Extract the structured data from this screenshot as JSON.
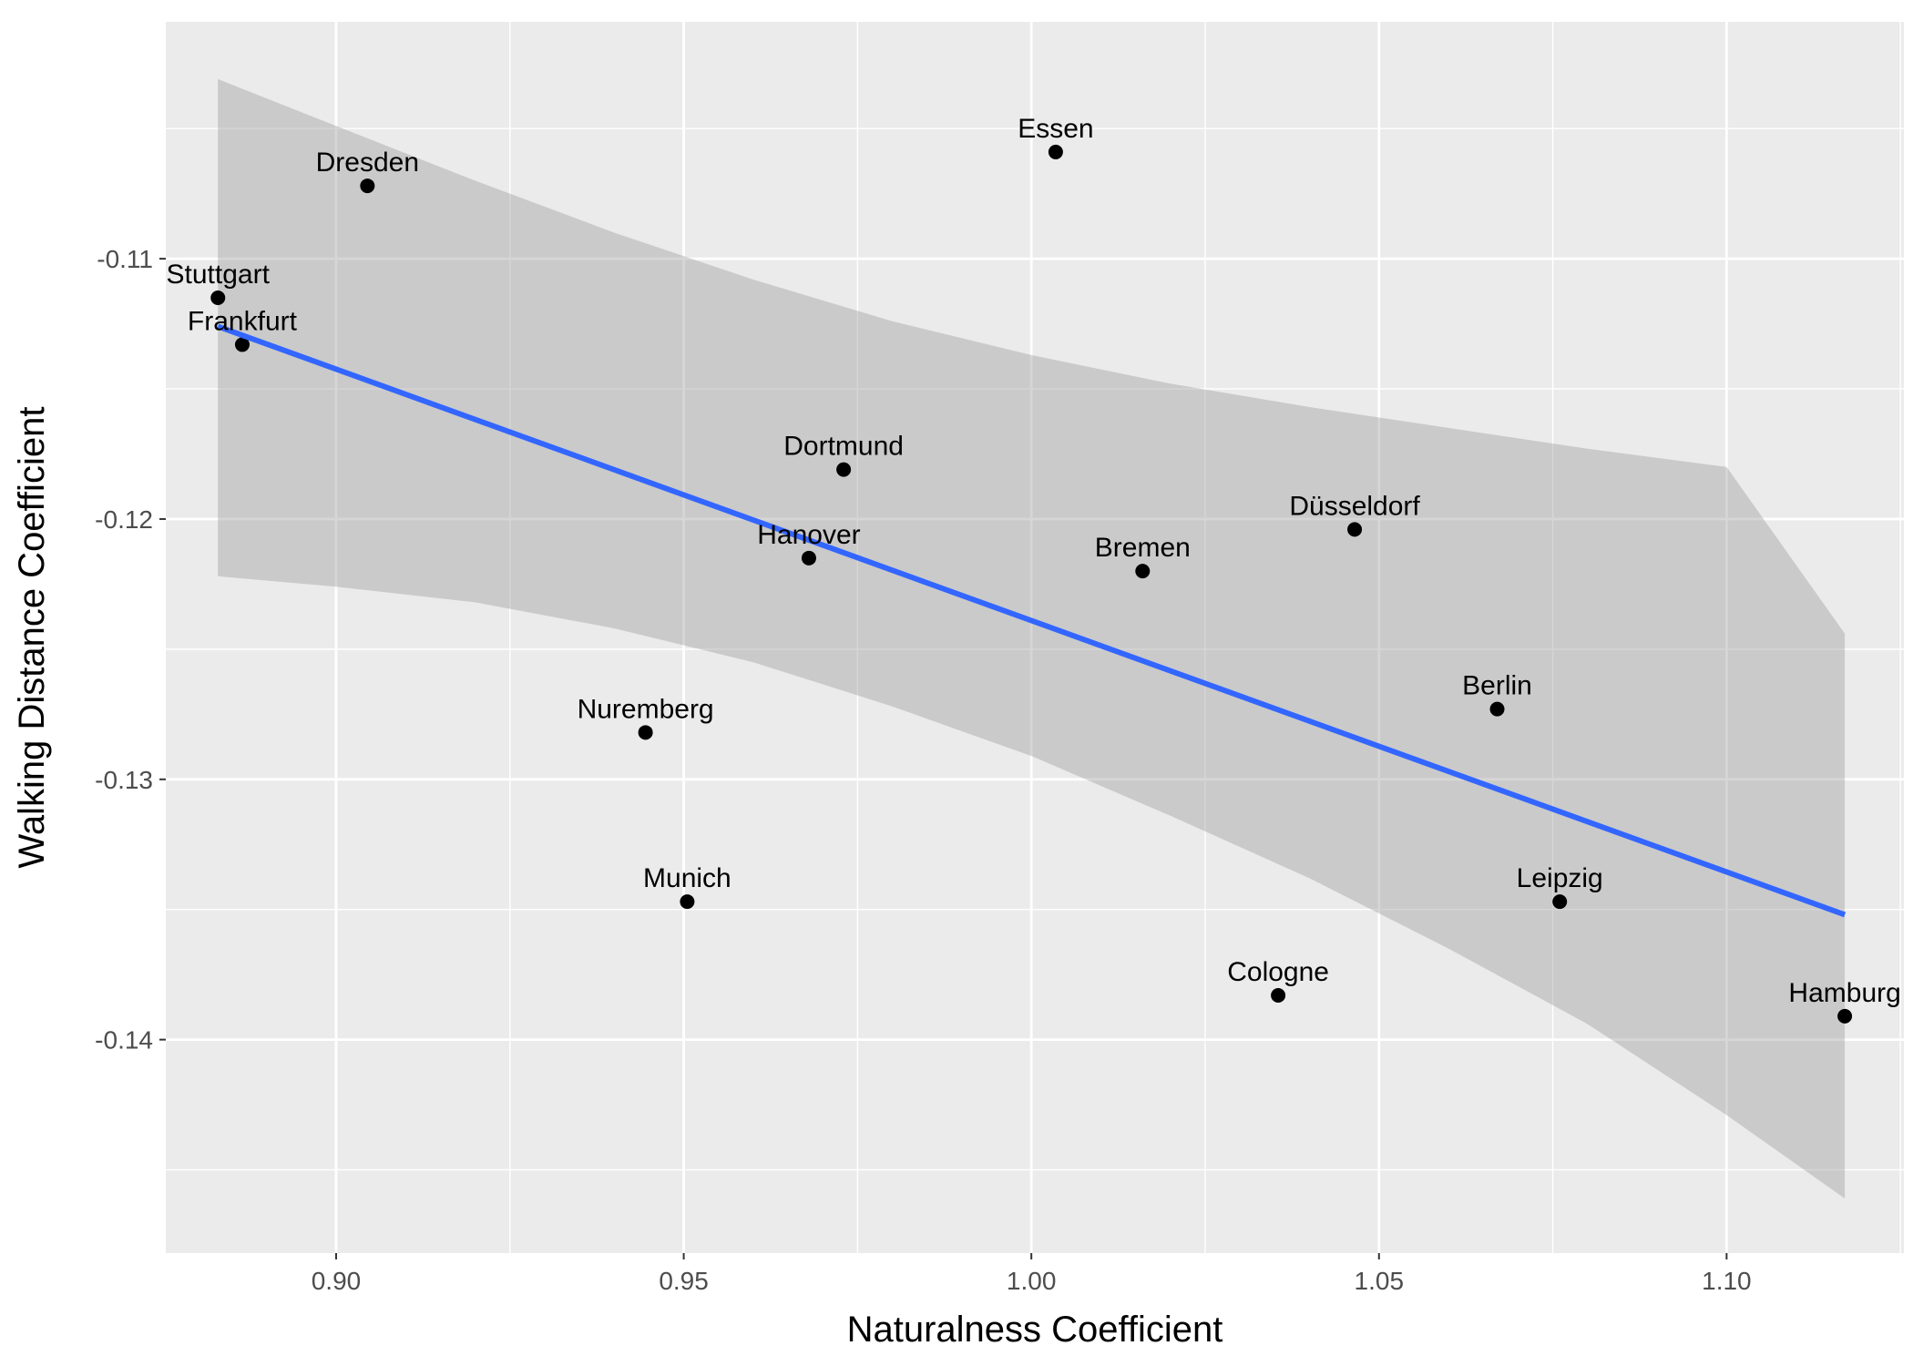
{
  "chart_data": {
    "type": "scatter",
    "title": "",
    "xlabel": "Naturalness Coefficient",
    "ylabel": "Walking Distance Coefficient",
    "xlim": [
      0.8755,
      1.1255
    ],
    "ylim": [
      -0.1482,
      -0.1009
    ],
    "x_ticks": [
      0.9,
      0.95,
      1.0,
      1.05,
      1.1
    ],
    "x_tick_labels": [
      "0.90",
      "0.95",
      "1.00",
      "1.05",
      "1.10"
    ],
    "y_ticks": [
      -0.11,
      -0.12,
      -0.13,
      -0.14
    ],
    "y_tick_labels": [
      "-0.11",
      "-0.12",
      "-0.13",
      "-0.14"
    ],
    "x_minor_ticks": [
      0.875,
      0.925,
      0.975,
      1.025,
      1.075,
      1.125
    ],
    "y_minor_ticks": [
      -0.105,
      -0.115,
      -0.125,
      -0.135,
      -0.145
    ],
    "grid": true,
    "colors": {
      "panel_background": "#ebebeb",
      "grid": "#ffffff",
      "point": "#000000",
      "regression_line": "#3366ff",
      "confidence_band": "#999999"
    },
    "points": [
      {
        "label": "Stuttgart",
        "x": 0.883,
        "y": -0.1115
      },
      {
        "label": "Frankfurt",
        "x": 0.8865,
        "y": -0.1133
      },
      {
        "label": "Dresden",
        "x": 0.9045,
        "y": -0.1072
      },
      {
        "label": "Essen",
        "x": 1.0035,
        "y": -0.1059
      },
      {
        "label": "Dortmund",
        "x": 0.973,
        "y": -0.1181
      },
      {
        "label": "Hanover",
        "x": 0.968,
        "y": -0.1215
      },
      {
        "label": "Bremen",
        "x": 1.016,
        "y": -0.122
      },
      {
        "label": "Düsseldorf",
        "x": 1.0465,
        "y": -0.1204
      },
      {
        "label": "Berlin",
        "x": 1.067,
        "y": -0.1273
      },
      {
        "label": "Nuremberg",
        "x": 0.9445,
        "y": -0.1282
      },
      {
        "label": "Munich",
        "x": 0.9505,
        "y": -0.1347
      },
      {
        "label": "Leipzig",
        "x": 1.076,
        "y": -0.1347
      },
      {
        "label": "Cologne",
        "x": 1.0355,
        "y": -0.1383
      },
      {
        "label": "Hamburg",
        "x": 1.117,
        "y": -0.1391
      }
    ],
    "regression": {
      "method": "linear",
      "start": {
        "x": 0.883,
        "y": -0.1126
      },
      "end": {
        "x": 1.117,
        "y": -0.1352
      },
      "confidence_band": [
        {
          "x": 0.883,
          "lower": -0.1222,
          "upper": -0.1031
        },
        {
          "x": 0.9,
          "lower": -0.1226,
          "upper": -0.1049
        },
        {
          "x": 0.92,
          "lower": -0.1232,
          "upper": -0.107
        },
        {
          "x": 0.94,
          "lower": -0.1242,
          "upper": -0.109
        },
        {
          "x": 0.96,
          "lower": -0.1255,
          "upper": -0.1108
        },
        {
          "x": 0.98,
          "lower": -0.1272,
          "upper": -0.1124
        },
        {
          "x": 1.0,
          "lower": -0.1291,
          "upper": -0.1137
        },
        {
          "x": 1.02,
          "lower": -0.1314,
          "upper": -0.1148
        },
        {
          "x": 1.04,
          "lower": -0.1338,
          "upper": -0.1157
        },
        {
          "x": 1.06,
          "lower": -0.1365,
          "upper": -0.1165
        },
        {
          "x": 1.08,
          "lower": -0.1394,
          "upper": -0.1173
        },
        {
          "x": 1.1,
          "lower": -0.1429,
          "upper": -0.118
        },
        {
          "x": 1.117,
          "lower": -0.1461,
          "upper": -0.1244
        }
      ]
    }
  }
}
